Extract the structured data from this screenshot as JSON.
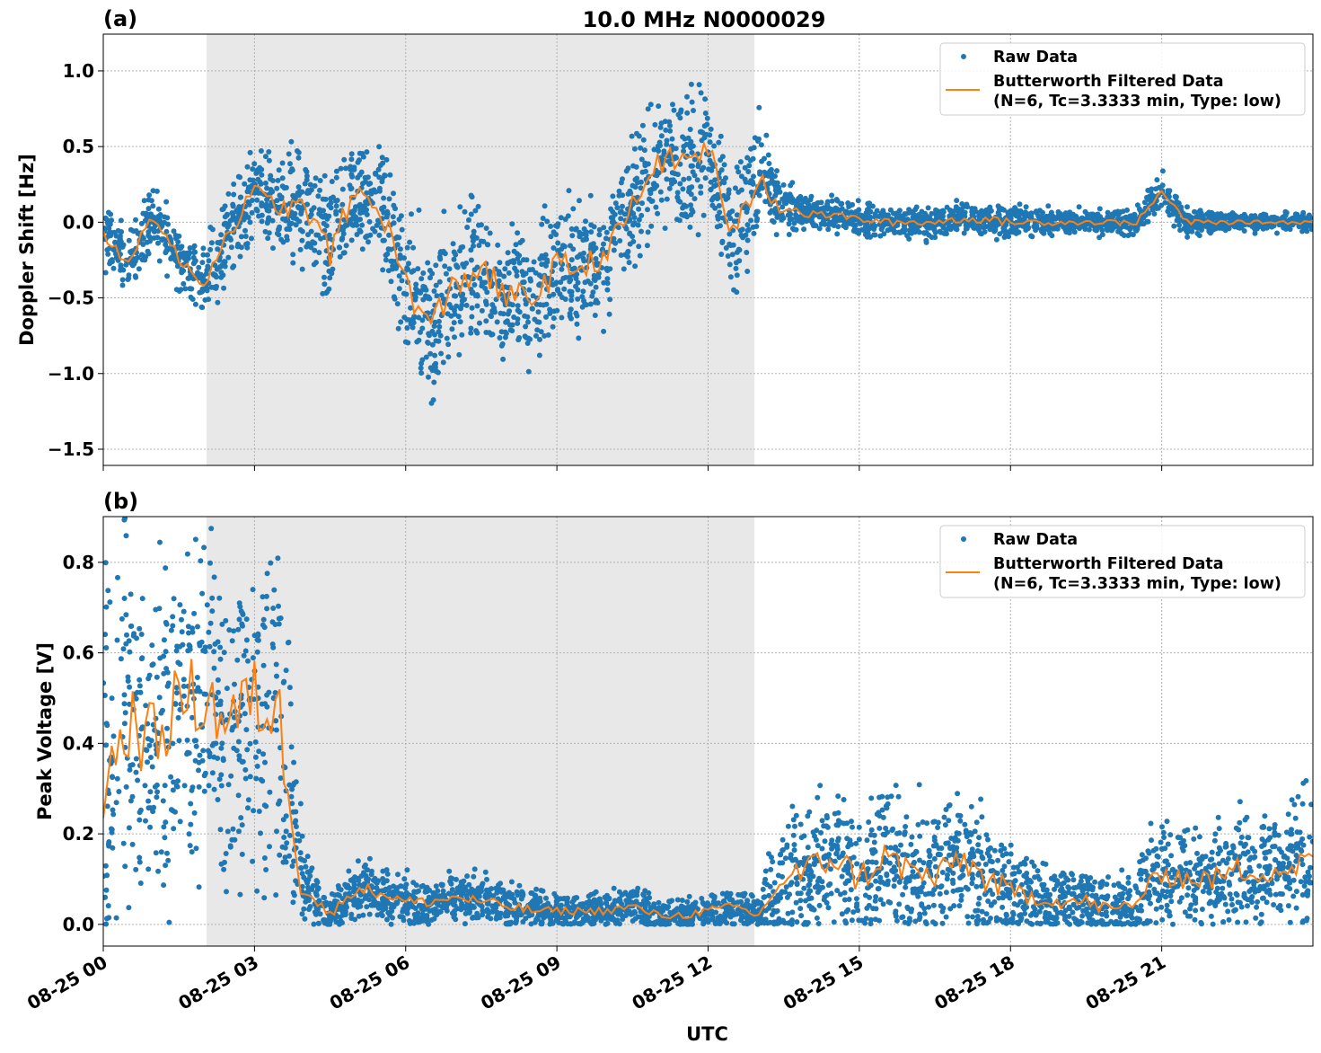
{
  "title": "10.0 MHz N0000029",
  "legend": {
    "raw": "Raw Data",
    "filtered_line1": "Butterworth Filtered Data",
    "filtered_line2": "(N=6, Tc=3.3333 min, Type: low)"
  },
  "colors": {
    "raw": "#1f77b4",
    "filtered": "#ff7f0e",
    "shade": "#e8e8e8"
  },
  "chart_data": [
    {
      "type": "scatter",
      "panel_label": "(a)",
      "ylabel": "Doppler Shift [Hz]",
      "xlabel": "",
      "xlim_hours": [
        0,
        24
      ],
      "ylim": [
        -1.607,
        1.243
      ],
      "yticks": [
        1.0,
        0.5,
        0.0,
        -0.5,
        -1.0,
        -1.5
      ],
      "ytick_labels": [
        "1.0",
        "0.5",
        "0.0",
        "−0.5",
        "−1.0",
        "−1.5"
      ],
      "grid": true,
      "legend_position": "top-right",
      "shaded_interval_hours": [
        2.05,
        12.92
      ],
      "x_hours": [
        0,
        0.5,
        1,
        1.5,
        2,
        2.5,
        3,
        3.5,
        4,
        4.5,
        5,
        5.5,
        6,
        6.5,
        7,
        7.5,
        8,
        8.5,
        9,
        9.5,
        10,
        10.5,
        11,
        11.5,
        12,
        12.5,
        13,
        13.5,
        14,
        14.5,
        15,
        15.5,
        16,
        16.5,
        17,
        17.5,
        18,
        18.5,
        19,
        19.5,
        20,
        20.5,
        21,
        21.5,
        22,
        22.5,
        23,
        23.5,
        24
      ],
      "filtered": [
        -0.1,
        -0.25,
        0.05,
        -0.25,
        -0.4,
        -0.05,
        0.2,
        0.1,
        0.1,
        -0.2,
        0.2,
        0.1,
        -0.4,
        -0.7,
        -0.4,
        -0.3,
        -0.5,
        -0.5,
        -0.3,
        -0.3,
        -0.2,
        0.1,
        0.4,
        0.4,
        0.5,
        -0.1,
        0.3,
        0.1,
        0.05,
        0.05,
        0.02,
        0.0,
        0.0,
        0.0,
        0.02,
        0.02,
        0.0,
        0.0,
        0.0,
        0.0,
        0.0,
        0.0,
        0.2,
        0.0,
        0.0,
        0.0,
        0.0,
        0.0,
        0.0
      ],
      "raw_spread": [
        0.15,
        0.15,
        0.15,
        0.15,
        0.18,
        0.2,
        0.2,
        0.22,
        0.3,
        0.3,
        0.3,
        0.3,
        0.35,
        0.4,
        0.35,
        0.35,
        0.35,
        0.35,
        0.35,
        0.3,
        0.3,
        0.3,
        0.3,
        0.35,
        0.3,
        0.3,
        0.3,
        0.12,
        0.08,
        0.08,
        0.08,
        0.08,
        0.08,
        0.08,
        0.08,
        0.08,
        0.08,
        0.07,
        0.06,
        0.06,
        0.06,
        0.06,
        0.1,
        0.06,
        0.05,
        0.04,
        0.04,
        0.04,
        0.05
      ]
    },
    {
      "type": "scatter",
      "panel_label": "(b)",
      "ylabel": "Peak Voltage [V]",
      "xlabel": "UTC",
      "xlim_hours": [
        0,
        24
      ],
      "ylim": [
        -0.048,
        0.901
      ],
      "yticks": [
        0.8,
        0.6,
        0.4,
        0.2,
        0.0
      ],
      "ytick_labels": [
        "0.8",
        "0.6",
        "0.4",
        "0.2",
        "0.0"
      ],
      "xticks_hours": [
        0,
        3,
        6,
        9,
        12,
        15,
        18,
        21
      ],
      "xtick_labels": [
        "08-25 00",
        "08-25 03",
        "08-25 06",
        "08-25 09",
        "08-25 12",
        "08-25 15",
        "08-25 18",
        "08-25 21"
      ],
      "grid": true,
      "legend_position": "top-right",
      "shaded_interval_hours": [
        2.05,
        12.92
      ],
      "x_hours": [
        0,
        0.5,
        1,
        1.5,
        2,
        2.5,
        3,
        3.5,
        4,
        4.5,
        5,
        5.5,
        6,
        6.5,
        7,
        7.5,
        8,
        8.5,
        9,
        9.5,
        10,
        10.5,
        11,
        11.5,
        12,
        12.5,
        13,
        13.5,
        14,
        14.5,
        15,
        15.5,
        16,
        16.5,
        17,
        17.5,
        18,
        18.5,
        19,
        19.5,
        20,
        20.5,
        21,
        21.5,
        22,
        22.5,
        23,
        23.5,
        24
      ],
      "filtered": [
        0.3,
        0.45,
        0.4,
        0.5,
        0.5,
        0.45,
        0.5,
        0.45,
        0.08,
        0.02,
        0.08,
        0.07,
        0.05,
        0.05,
        0.06,
        0.05,
        0.04,
        0.03,
        0.03,
        0.03,
        0.03,
        0.04,
        0.02,
        0.02,
        0.03,
        0.04,
        0.02,
        0.1,
        0.12,
        0.15,
        0.1,
        0.15,
        0.12,
        0.1,
        0.15,
        0.1,
        0.07,
        0.06,
        0.05,
        0.05,
        0.03,
        0.05,
        0.12,
        0.1,
        0.1,
        0.12,
        0.12,
        0.12,
        0.15
      ],
      "raw_spread": [
        0.3,
        0.3,
        0.3,
        0.3,
        0.3,
        0.3,
        0.3,
        0.3,
        0.06,
        0.04,
        0.05,
        0.04,
        0.04,
        0.04,
        0.04,
        0.04,
        0.04,
        0.03,
        0.03,
        0.03,
        0.03,
        0.03,
        0.03,
        0.03,
        0.03,
        0.04,
        0.02,
        0.12,
        0.12,
        0.12,
        0.12,
        0.12,
        0.12,
        0.1,
        0.12,
        0.1,
        0.08,
        0.06,
        0.05,
        0.06,
        0.05,
        0.06,
        0.1,
        0.08,
        0.08,
        0.1,
        0.1,
        0.1,
        0.12
      ]
    }
  ]
}
